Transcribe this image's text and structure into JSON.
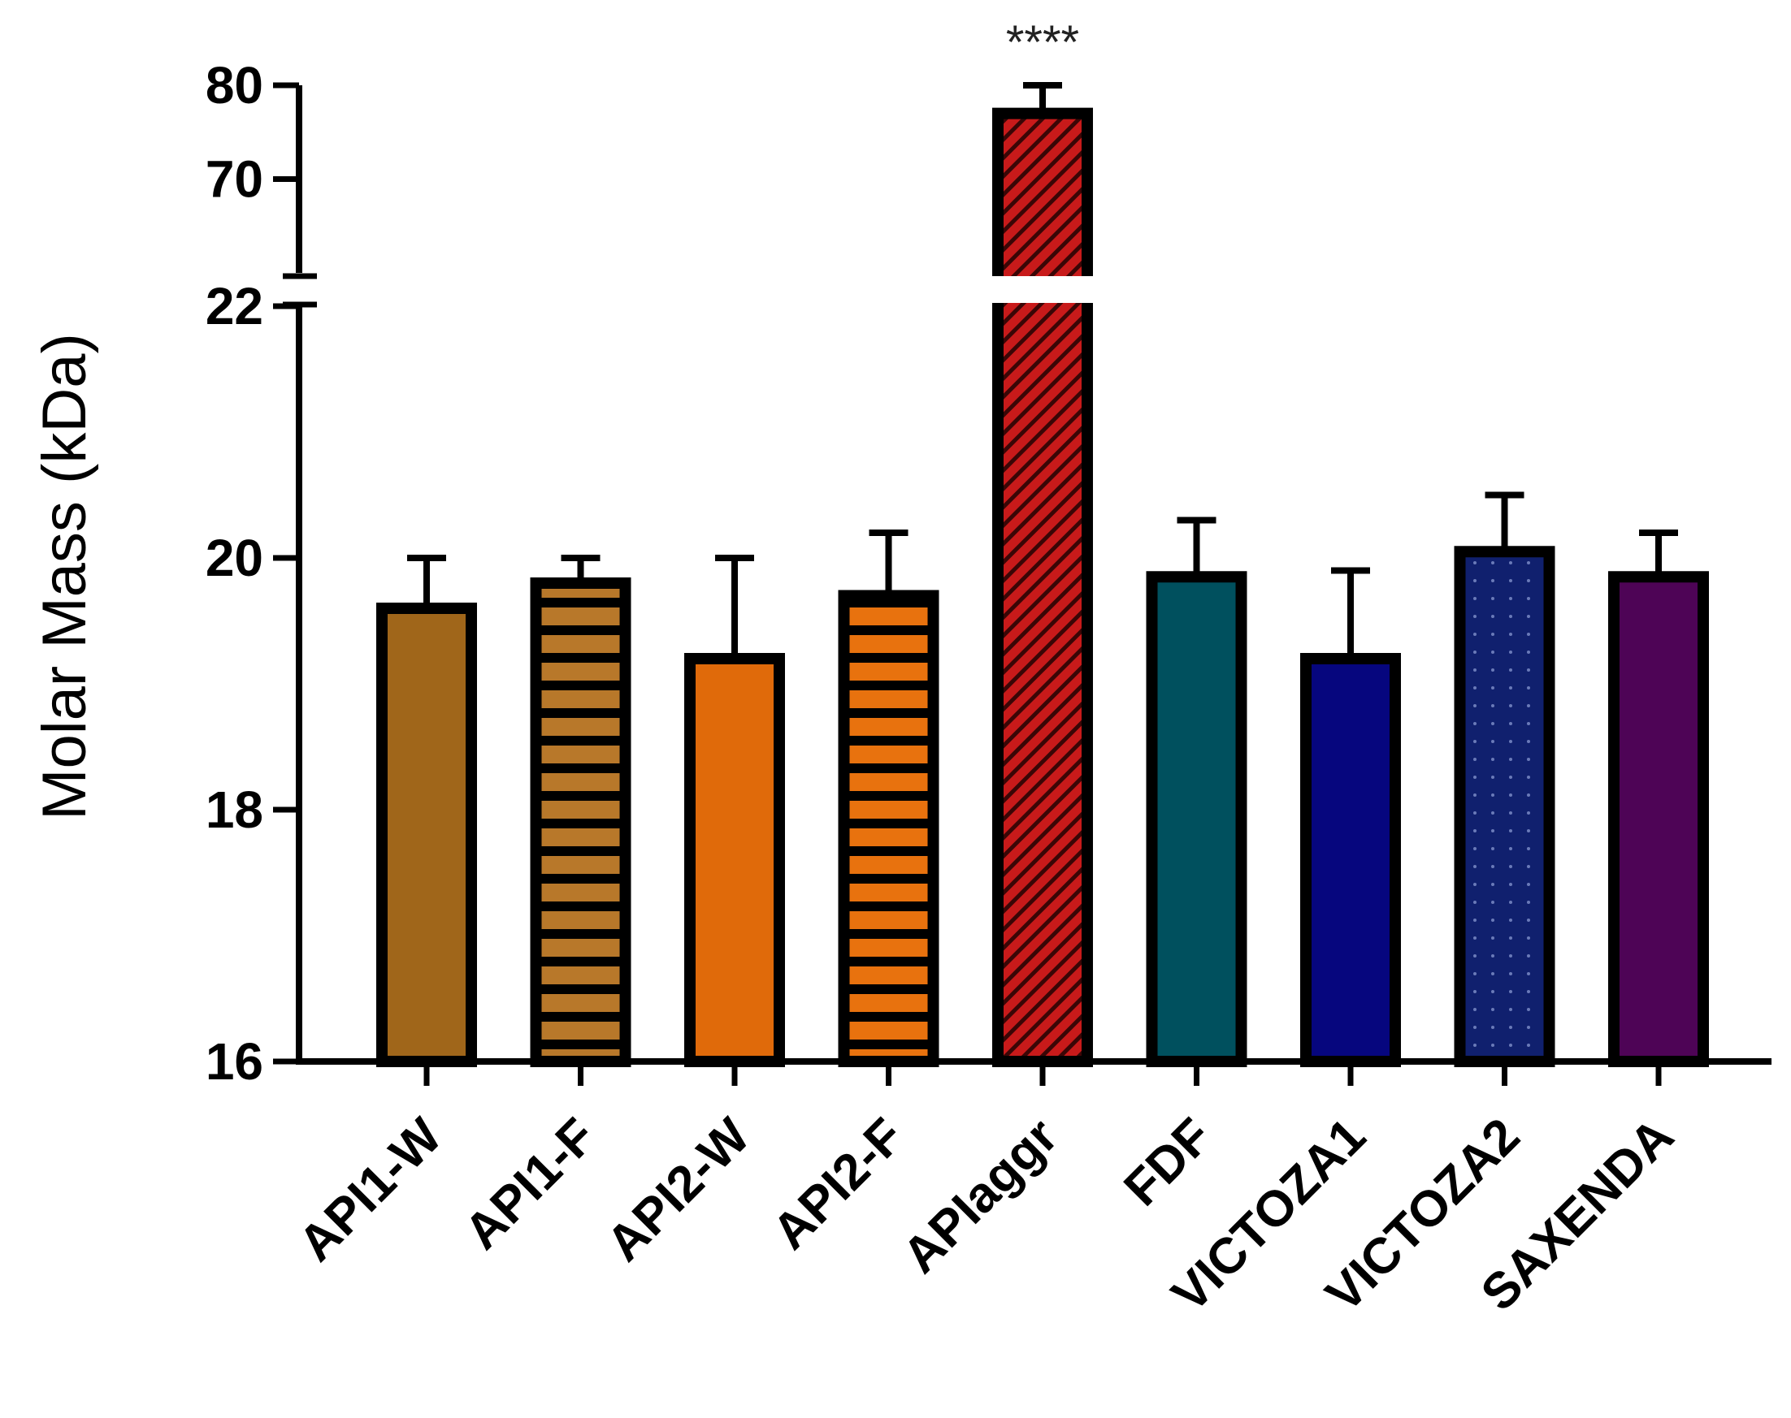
{
  "chart_data": {
    "type": "bar",
    "title": "",
    "xlabel": "",
    "ylabel": "Molar Mass (kDa)",
    "axis_break": {
      "lower_range": [
        16,
        22
      ],
      "upper_range": [
        60,
        80
      ]
    },
    "y_ticks_lower": [
      16,
      18,
      20,
      22
    ],
    "y_ticks_upper": [
      70,
      80
    ],
    "tick_labels_lower": [
      "16",
      "18",
      "20",
      "22"
    ],
    "tick_labels_upper": [
      "70",
      "80"
    ],
    "grid": false,
    "categories": [
      "API1-W",
      "API1-F",
      "API2-W",
      "API2-F",
      "APIaggr",
      "FDF",
      "VICTOZA1",
      "VICTOZA2",
      "SAXENDA"
    ],
    "values": [
      19.6,
      19.8,
      19.2,
      19.7,
      77,
      19.85,
      19.2,
      20.05,
      19.85
    ],
    "errors": [
      0.4,
      0.2,
      0.8,
      0.5,
      3,
      0.45,
      0.7,
      0.45,
      0.35
    ],
    "colors": [
      "#a0661a",
      "#b8782a",
      "#e06a0a",
      "#e8720e",
      "#c81a1a",
      "#00505e",
      "#06067e",
      "#10206e",
      "#4e0456"
    ],
    "patterns": [
      "solid",
      "stripes",
      "solid",
      "stripes",
      "diagonal",
      "solid",
      "solid",
      "dots",
      "solid"
    ],
    "annotations": [
      {
        "category": "APIaggr",
        "text": "****"
      }
    ]
  }
}
